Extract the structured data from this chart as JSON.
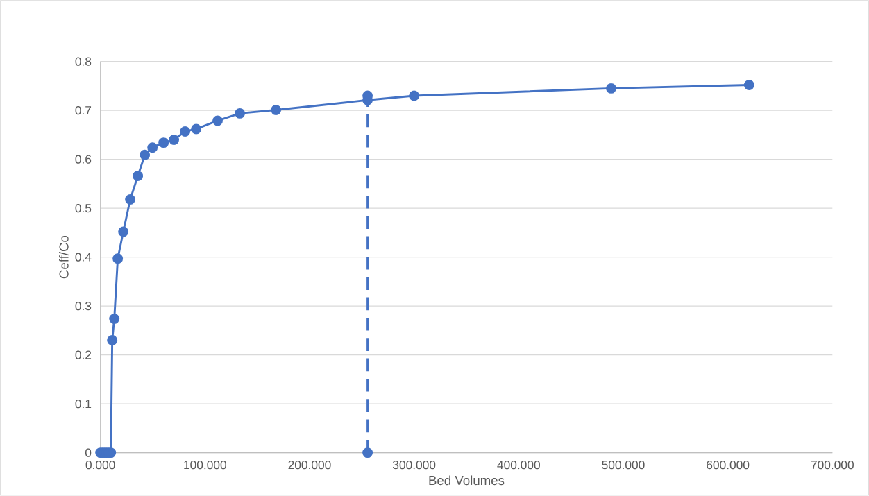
{
  "chart_data": {
    "type": "line",
    "xlabel": "Bed Volumes",
    "ylabel": "Ceff/Co",
    "xlim": [
      0,
      700
    ],
    "ylim": [
      0,
      0.8
    ],
    "xticks": [
      {
        "value": 0,
        "label": "0.000"
      },
      {
        "value": 100,
        "label": "100.000"
      },
      {
        "value": 200,
        "label": "200.000"
      },
      {
        "value": 300,
        "label": "300.000"
      },
      {
        "value": 400,
        "label": "400.000"
      },
      {
        "value": 500,
        "label": "500.000"
      },
      {
        "value": 600,
        "label": "600.000"
      },
      {
        "value": 700,
        "label": "700.000"
      }
    ],
    "yticks": [
      0,
      0.1,
      0.2,
      0.3,
      0.4,
      0.5,
      0.6,
      0.7,
      0.8
    ],
    "grid": "y",
    "marker": "circle",
    "series": [
      {
        "color": "#4472c4",
        "line_style": "solid",
        "x": [
          0,
          2,
          4,
          6,
          8,
          10,
          11.3,
          13.3,
          16.6,
          21.9,
          28.5,
          35.8,
          42.5,
          49.8,
          60.4,
          70.3,
          81,
          91.6,
          112.1,
          133.4,
          167.9,
          255.5,
          300,
          488.4,
          620.4
        ],
        "values": [
          0,
          0,
          0,
          0,
          0,
          0,
          0.23,
          0.274,
          0.397,
          0.452,
          0.518,
          0.566,
          0.609,
          0.624,
          0.634,
          0.64,
          0.657,
          0.662,
          0.679,
          0.694,
          0.701,
          0.721,
          0.73,
          0.745,
          0.752
        ]
      },
      {
        "color": "#4472c4",
        "line_style": "dashed",
        "x": [
          255.5,
          255.5
        ],
        "values": [
          0,
          0.73
        ]
      }
    ]
  }
}
